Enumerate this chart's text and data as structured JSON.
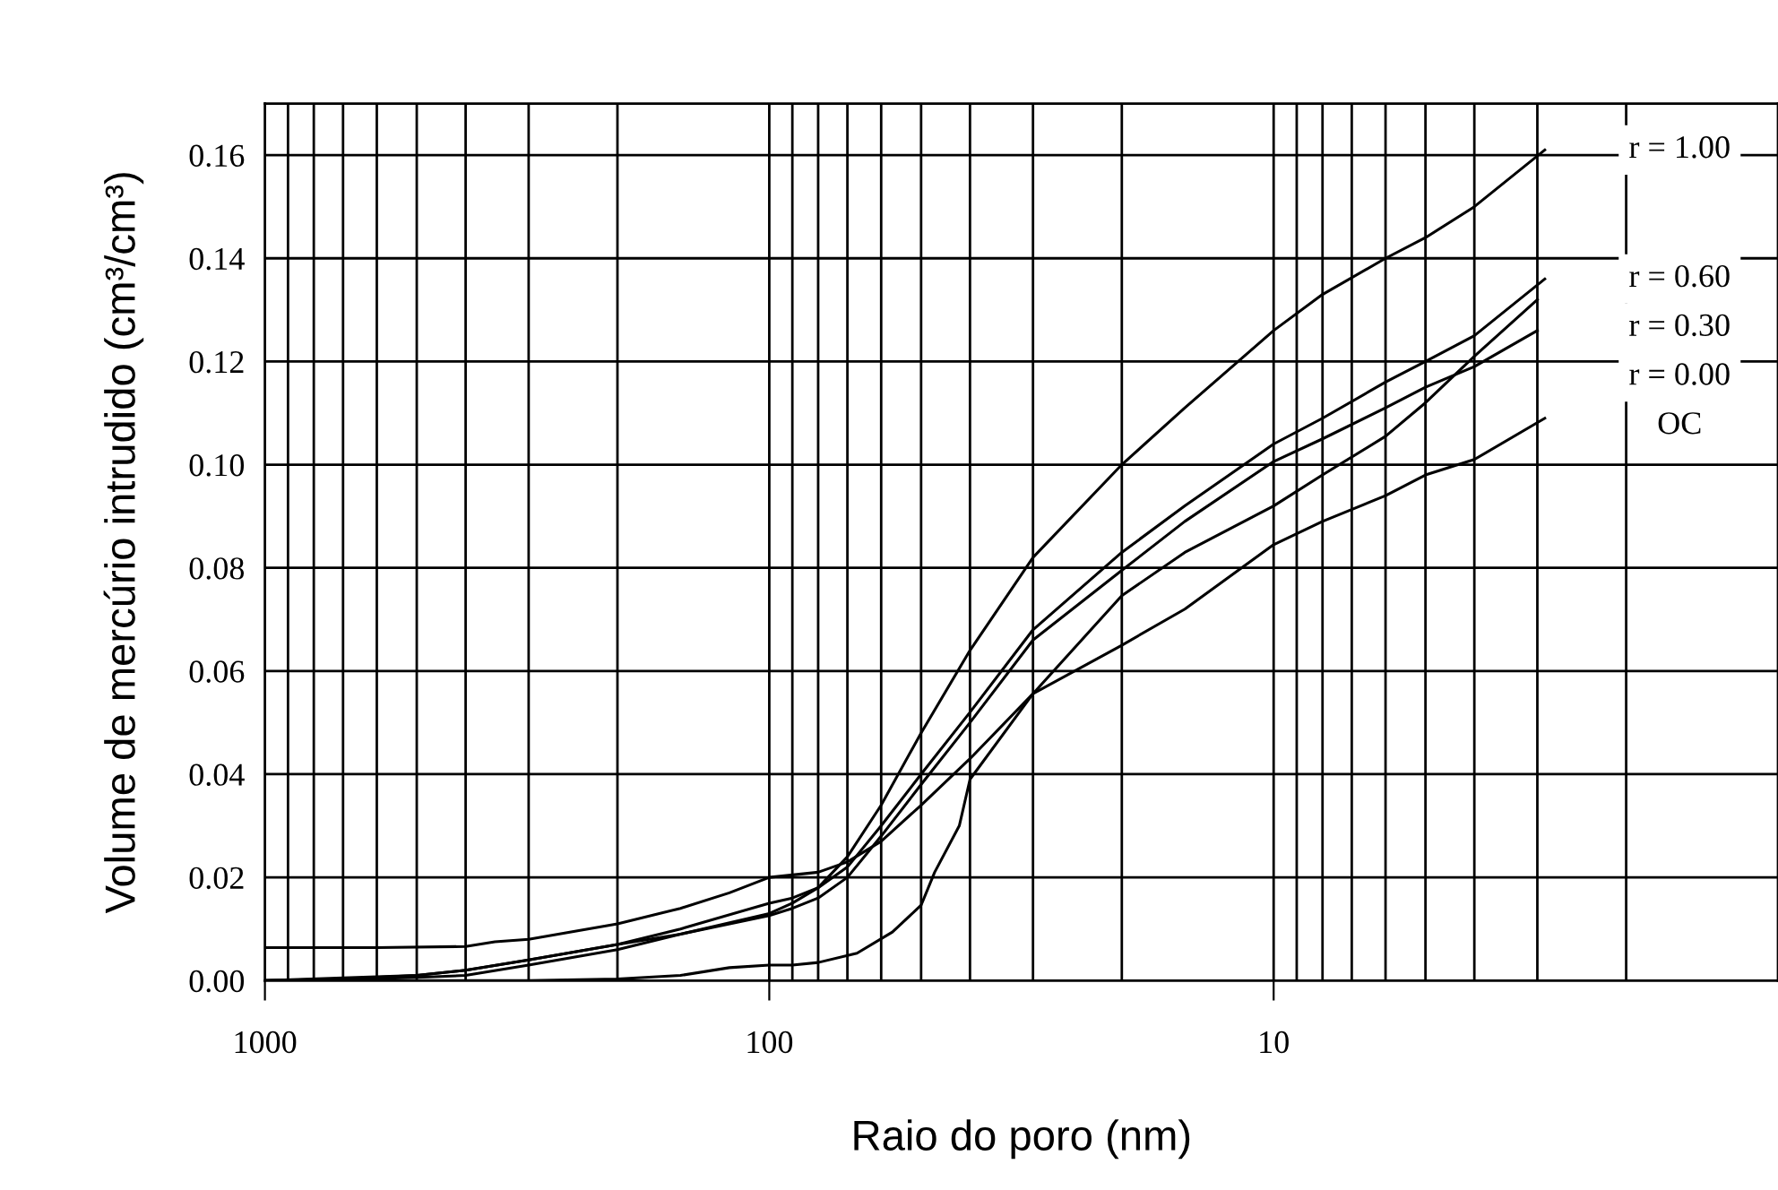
{
  "chart_data": {
    "type": "line",
    "xlabel": "Raio do poro (nm)",
    "ylabel": "Volume de mercúrio intrudido (cm³/cm³)",
    "log": "x",
    "xlim": [
      1000,
      1
    ],
    "ylim": [
      0,
      0.17
    ],
    "xticks": [
      {
        "value": 1000,
        "label": "1000"
      },
      {
        "value": 900,
        "label": null
      },
      {
        "value": 800,
        "label": null
      },
      {
        "value": 700,
        "label": null
      },
      {
        "value": 600,
        "label": null
      },
      {
        "value": 500,
        "label": null
      },
      {
        "value": 400,
        "label": null
      },
      {
        "value": 300,
        "label": null
      },
      {
        "value": 200,
        "label": null
      },
      {
        "value": 100,
        "label": "100"
      },
      {
        "value": 90,
        "label": null
      },
      {
        "value": 80,
        "label": null
      },
      {
        "value": 70,
        "label": null
      },
      {
        "value": 60,
        "label": null
      },
      {
        "value": 50,
        "label": null
      },
      {
        "value": 40,
        "label": null
      },
      {
        "value": 30,
        "label": null
      },
      {
        "value": 20,
        "label": null
      },
      {
        "value": 10,
        "label": "10"
      },
      {
        "value": 9,
        "label": null
      },
      {
        "value": 8,
        "label": null
      },
      {
        "value": 7,
        "label": null
      },
      {
        "value": 6,
        "label": null
      },
      {
        "value": 5,
        "label": null
      },
      {
        "value": 4,
        "label": null
      },
      {
        "value": 3,
        "label": null
      },
      {
        "value": 2,
        "label": null
      }
    ],
    "yticks": [
      {
        "value": 0,
        "label": "0.00"
      },
      {
        "value": 0.02,
        "label": "0.02"
      },
      {
        "value": 0.04,
        "label": "0.04"
      },
      {
        "value": 0.06,
        "label": "0.06"
      },
      {
        "value": 0.08,
        "label": "0.08"
      },
      {
        "value": 0.1,
        "label": "0.10"
      },
      {
        "value": 0.12,
        "label": "0.12"
      },
      {
        "value": 0.14,
        "label": "0.14"
      },
      {
        "value": 0.16,
        "label": "0.16"
      }
    ],
    "grid": true,
    "legend": false,
    "marker": "none",
    "line_style": "solid",
    "series": [
      {
        "name": "r = 1.00",
        "color": "#000000",
        "x": [
          1000,
          700,
          500,
          400,
          300,
          200,
          150,
          100,
          90,
          80,
          70,
          60,
          50,
          40,
          30,
          20,
          15,
          10,
          8,
          6,
          5,
          4,
          2.9
        ],
        "values": [
          0,
          0.0005,
          0.001,
          0.002,
          0.004,
          0.007,
          0.009,
          0.013,
          0.015,
          0.018,
          0.024,
          0.034,
          0.048,
          0.064,
          0.082,
          0.1,
          0.111,
          0.126,
          0.133,
          0.14,
          0.144,
          0.15,
          0.161
        ]
      },
      {
        "name": "r = 0.60",
        "color": "#000000",
        "x": [
          1000,
          700,
          500,
          400,
          300,
          200,
          150,
          100,
          90,
          80,
          70,
          60,
          50,
          40,
          30,
          20,
          15,
          10,
          8,
          6,
          5,
          4,
          2.9
        ],
        "values": [
          0,
          0.0003,
          0.001,
          0.002,
          0.004,
          0.007,
          0.01,
          0.015,
          0.016,
          0.018,
          0.022,
          0.03,
          0.04,
          0.052,
          0.068,
          0.083,
          0.092,
          0.104,
          0.109,
          0.116,
          0.12,
          0.125,
          0.136
        ]
      },
      {
        "name": "r = 0.30",
        "color": "#000000",
        "x": [
          1000,
          500,
          300,
          200,
          150,
          120,
          100,
          90,
          80,
          67,
          57,
          50,
          47,
          42,
          40,
          30,
          20,
          15,
          10,
          8,
          6,
          5,
          4,
          3
        ],
        "values": [
          0,
          0,
          0,
          0.0003,
          0.001,
          0.0025,
          0.003,
          0.003,
          0.0035,
          0.0053,
          0.0094,
          0.0146,
          0.021,
          0.03,
          0.039,
          0.0556,
          0.0746,
          0.083,
          0.092,
          0.098,
          0.1055,
          0.112,
          0.121,
          0.132
        ]
      },
      {
        "name": "r = 0.00",
        "color": "#000000",
        "x": [
          1000,
          700,
          500,
          400,
          300,
          200,
          150,
          100,
          90,
          80,
          70,
          60,
          50,
          40,
          30,
          20,
          15,
          10,
          8,
          6,
          5,
          4,
          3
        ],
        "values": [
          0,
          0.0002,
          0.0006,
          0.001,
          0.003,
          0.006,
          0.009,
          0.0126,
          0.014,
          0.016,
          0.02,
          0.028,
          0.038,
          0.05,
          0.066,
          0.0795,
          0.089,
          0.1006,
          0.105,
          0.111,
          0.115,
          0.119,
          0.126
        ]
      },
      {
        "name": "OC",
        "color": "#000000",
        "x": [
          1000,
          600,
          400,
          350,
          300,
          200,
          150,
          120,
          100,
          80,
          70,
          60,
          50,
          40,
          30,
          20,
          15,
          10,
          8,
          6,
          5,
          4,
          2.9
        ],
        "values": [
          0.0064,
          0.0064,
          0.0066,
          0.0075,
          0.008,
          0.011,
          0.014,
          0.017,
          0.02,
          0.021,
          0.023,
          0.027,
          0.034,
          0.043,
          0.0556,
          0.065,
          0.072,
          0.0845,
          0.089,
          0.094,
          0.098,
          0.101,
          0.109
        ]
      }
    ]
  }
}
